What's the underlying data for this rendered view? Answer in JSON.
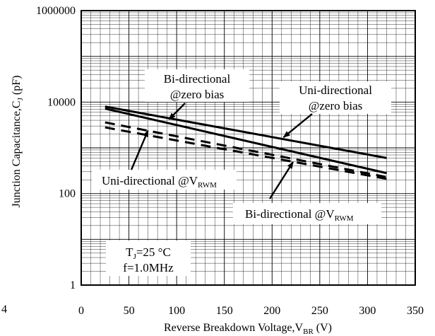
{
  "chart_data": {
    "type": "line",
    "title": "",
    "xlabel": {
      "main": "Reverse  Breakdown Voltage,V",
      "sub": "BR",
      "unit": " (V)"
    },
    "ylabel": {
      "main": "Junction Capacitance,C",
      "sub": "J",
      "unit": " (pF)"
    },
    "xlim": [
      0,
      350
    ],
    "ylim": [
      1,
      1000000
    ],
    "yscale": "log",
    "xticks": [
      "0",
      "50",
      "100",
      "150",
      "200",
      "250",
      "300",
      "350"
    ],
    "yticks": [
      "1",
      "100",
      "10000",
      "1000000"
    ],
    "grid": true,
    "edge_fragment": "4",
    "series": [
      {
        "style": "solid",
        "x": [
          25,
          320
        ],
        "y": [
          8000,
          600
        ]
      },
      {
        "style": "solid",
        "x": [
          25,
          320
        ],
        "y": [
          7200,
          280
        ]
      },
      {
        "style": "dashed",
        "x": [
          25,
          320
        ],
        "y": [
          3600,
          230
        ]
      },
      {
        "style": "dashed",
        "x": [
          25,
          320
        ],
        "y": [
          2800,
          210
        ]
      }
    ],
    "annotations": [
      {
        "name": "bidir-zero",
        "lines": [
          "Bi-directional",
          "@zero bias"
        ],
        "arrow_to": [
          92,
          4200
        ]
      },
      {
        "name": "unidir-zero",
        "lines": [
          "Uni-directional",
          "@zero bias"
        ],
        "arrow_to": [
          212,
          1700
        ]
      },
      {
        "name": "unidir-vrwm",
        "text": "Uni-directional @V",
        "sub": "RWM",
        "arrow_to": [
          70,
          2400
        ]
      },
      {
        "name": "bidir-vrwm",
        "text": "Bi-directional @V",
        "sub": "RWM",
        "arrow_to": [
          222,
          490
        ]
      }
    ],
    "conditions": {
      "tj": "T",
      "tj_sub": "J",
      "tj_value": "=25 °C",
      "freq": "f=1.0MHz"
    }
  }
}
